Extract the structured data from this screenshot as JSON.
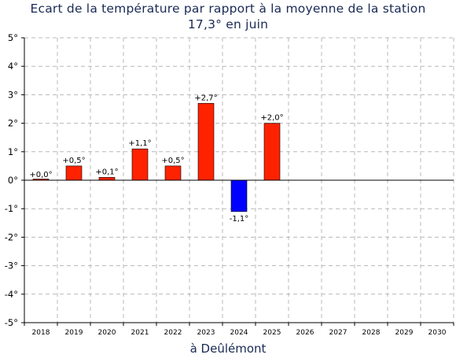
{
  "chart_data": {
    "type": "bar",
    "title": "Ecart de la température par rapport à la moyenne de la station",
    "subtitle": "17,3° en juin",
    "xlabel": "à Deûlémont",
    "ylabel": "",
    "ylim": [
      -5,
      5
    ],
    "yticks": [
      {
        "value": 5,
        "label": "5°"
      },
      {
        "value": 4,
        "label": "4°"
      },
      {
        "value": 3,
        "label": "3°"
      },
      {
        "value": 2,
        "label": "2°"
      },
      {
        "value": 1,
        "label": "1°"
      },
      {
        "value": 0,
        "label": "0°"
      },
      {
        "value": -1,
        "label": "-1°"
      },
      {
        "value": -2,
        "label": "-2°"
      },
      {
        "value": -3,
        "label": "-3°"
      },
      {
        "value": -4,
        "label": "-4°"
      },
      {
        "value": -5,
        "label": "-5°"
      }
    ],
    "categories": [
      "2018",
      "2019",
      "2020",
      "2021",
      "2022",
      "2023",
      "2024",
      "2025",
      "2026",
      "2027",
      "2028",
      "2029",
      "2030"
    ],
    "values": [
      0.0,
      0.5,
      0.1,
      1.1,
      0.5,
      2.7,
      -1.1,
      2.0,
      null,
      null,
      null,
      null,
      null
    ],
    "data_labels": [
      "+0,0°",
      "+0,5°",
      "+0,1°",
      "+1,1°",
      "+0,5°",
      "+2,7°",
      "-1,1°",
      "+2,0°",
      "",
      "",
      "",
      "",
      ""
    ],
    "colors": {
      "positive": "#ff2200",
      "negative": "#0000ff",
      "grid": "#b8b8b8",
      "axis": "#000000",
      "title": "#1a2a55"
    },
    "grid": true,
    "legend": "none"
  }
}
